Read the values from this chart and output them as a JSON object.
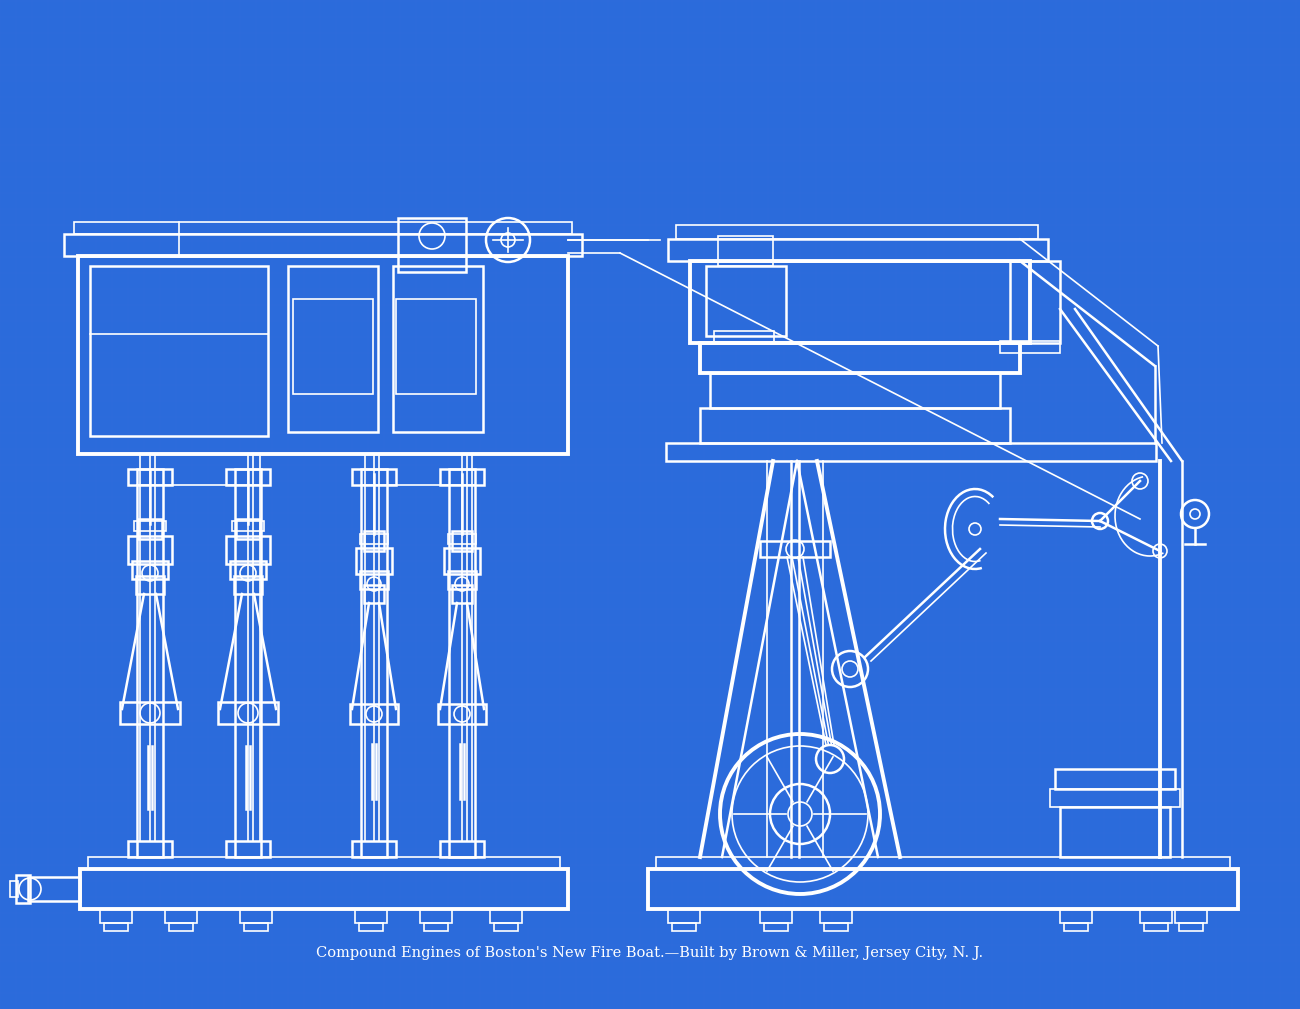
{
  "bg_color": "#2b6bdb",
  "grid_color_major": "#4a80e8",
  "grid_color_minor": "#3a73e0",
  "line_color": "#ffffff",
  "text_color": "#ffffff",
  "caption": "Compound Engines of Boston's New Fire Boat.—Built by Brown & Miller, Jersey City, N. J.",
  "caption_fontsize": 10.5,
  "fig_width": 13.0,
  "fig_height": 10.09,
  "dpi": 100
}
